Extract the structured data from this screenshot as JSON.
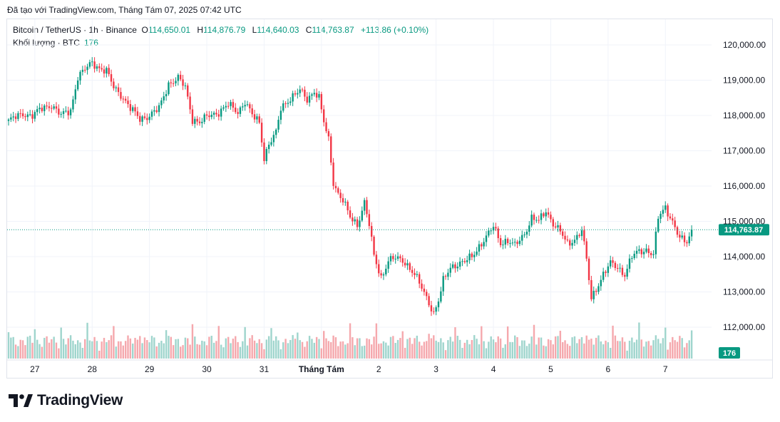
{
  "header": {
    "created_text": "Đã tạo với TradingView.com, Tháng Tám 07, 2025 07:42 UTC"
  },
  "legend": {
    "symbol": "Bitcoin / TetherUS · 1h · Binance",
    "open_label": "O",
    "open": "114,650.01",
    "high_label": "H",
    "high": "114,876.79",
    "low_label": "L",
    "low": "114,640.03",
    "close_label": "C",
    "close": "114,763.87",
    "change": "+113.86 (+0.10%)",
    "volume_label": "Khối lượng · BTC",
    "volume_value": "176"
  },
  "brand": {
    "name": "TradingView"
  },
  "colors": {
    "up": "#089981",
    "down": "#f23645",
    "up_vol": "#9fd5cd",
    "down_vol": "#f5a8ad",
    "grid": "#f0f3fa",
    "text": "#131722"
  },
  "chart_data": {
    "type": "candlestick",
    "title": "Bitcoin / TetherUS · 1h · Binance",
    "y_axis": {
      "min": 111500,
      "max": 120500,
      "ticks": [
        112000,
        113000,
        114000,
        115000,
        116000,
        117000,
        118000,
        119000,
        120000
      ],
      "tick_labels": [
        "112,000.00",
        "113,000.00",
        "114,000.00",
        "115,000.00",
        "116,000.00",
        "117,000.00",
        "118,000.00",
        "119,000.00",
        "120,000.00"
      ]
    },
    "x_axis": {
      "tick_labels": [
        "27",
        "28",
        "29",
        "30",
        "31",
        "Tháng Tám",
        "2",
        "3",
        "4",
        "5",
        "6",
        "7"
      ],
      "tick_index": [
        11,
        35,
        59,
        83,
        107,
        131,
        155,
        179,
        203,
        227,
        251,
        275
      ]
    },
    "grid": true,
    "last_price": 114763.87,
    "last_price_label": "114,763.87",
    "volume_last_label": "176",
    "anchors": [
      [
        0,
        117850
      ],
      [
        6,
        118050
      ],
      [
        10,
        118000
      ],
      [
        14,
        118200
      ],
      [
        18,
        118300
      ],
      [
        22,
        118000
      ],
      [
        26,
        118150
      ],
      [
        29,
        119100
      ],
      [
        32,
        119300
      ],
      [
        35,
        119500
      ],
      [
        38,
        119350
      ],
      [
        41,
        119250
      ],
      [
        44,
        118800
      ],
      [
        47,
        118600
      ],
      [
        51,
        118200
      ],
      [
        55,
        117900
      ],
      [
        59,
        118000
      ],
      [
        63,
        118200
      ],
      [
        67,
        118900
      ],
      [
        71,
        119050
      ],
      [
        74,
        118800
      ],
      [
        77,
        117900
      ],
      [
        80,
        117800
      ],
      [
        84,
        118000
      ],
      [
        88,
        118100
      ],
      [
        92,
        118300
      ],
      [
        96,
        118100
      ],
      [
        99,
        118400
      ],
      [
        102,
        118000
      ],
      [
        105,
        117800
      ],
      [
        107,
        116800
      ],
      [
        109,
        117200
      ],
      [
        112,
        117500
      ],
      [
        114,
        118200
      ],
      [
        118,
        118500
      ],
      [
        122,
        118700
      ],
      [
        125,
        118450
      ],
      [
        128,
        118700
      ],
      [
        130,
        118500
      ],
      [
        132,
        117800
      ],
      [
        134,
        117300
      ],
      [
        136,
        116100
      ],
      [
        138,
        115800
      ],
      [
        140,
        115600
      ],
      [
        143,
        115100
      ],
      [
        146,
        114900
      ],
      [
        149,
        115550
      ],
      [
        151,
        114900
      ],
      [
        153,
        114000
      ],
      [
        156,
        113400
      ],
      [
        159,
        113900
      ],
      [
        162,
        113950
      ],
      [
        166,
        113850
      ],
      [
        170,
        113500
      ],
      [
        173,
        113100
      ],
      [
        176,
        112700
      ],
      [
        178,
        112400
      ],
      [
        180,
        112750
      ],
      [
        182,
        113300
      ],
      [
        185,
        113700
      ],
      [
        188,
        113800
      ],
      [
        191,
        113850
      ],
      [
        194,
        114000
      ],
      [
        197,
        114300
      ],
      [
        200,
        114550
      ],
      [
        203,
        114850
      ],
      [
        206,
        114400
      ],
      [
        209,
        114450
      ],
      [
        212,
        114300
      ],
      [
        216,
        114650
      ],
      [
        219,
        115100
      ],
      [
        222,
        115000
      ],
      [
        225,
        115300
      ],
      [
        228,
        114950
      ],
      [
        231,
        114700
      ],
      [
        234,
        114350
      ],
      [
        237,
        114500
      ],
      [
        240,
        114750
      ],
      [
        242,
        113900
      ],
      [
        244,
        112800
      ],
      [
        246,
        113100
      ],
      [
        249,
        113500
      ],
      [
        252,
        113800
      ],
      [
        255,
        113700
      ],
      [
        258,
        113500
      ],
      [
        261,
        114000
      ],
      [
        264,
        114150
      ],
      [
        267,
        114200
      ],
      [
        270,
        114050
      ],
      [
        272,
        115100
      ],
      [
        275,
        115400
      ],
      [
        278,
        115000
      ],
      [
        281,
        114500
      ],
      [
        284,
        114400
      ],
      [
        286,
        114763.87
      ]
    ],
    "volume_note": "volume histogram bars under price, colored by candle direction"
  }
}
